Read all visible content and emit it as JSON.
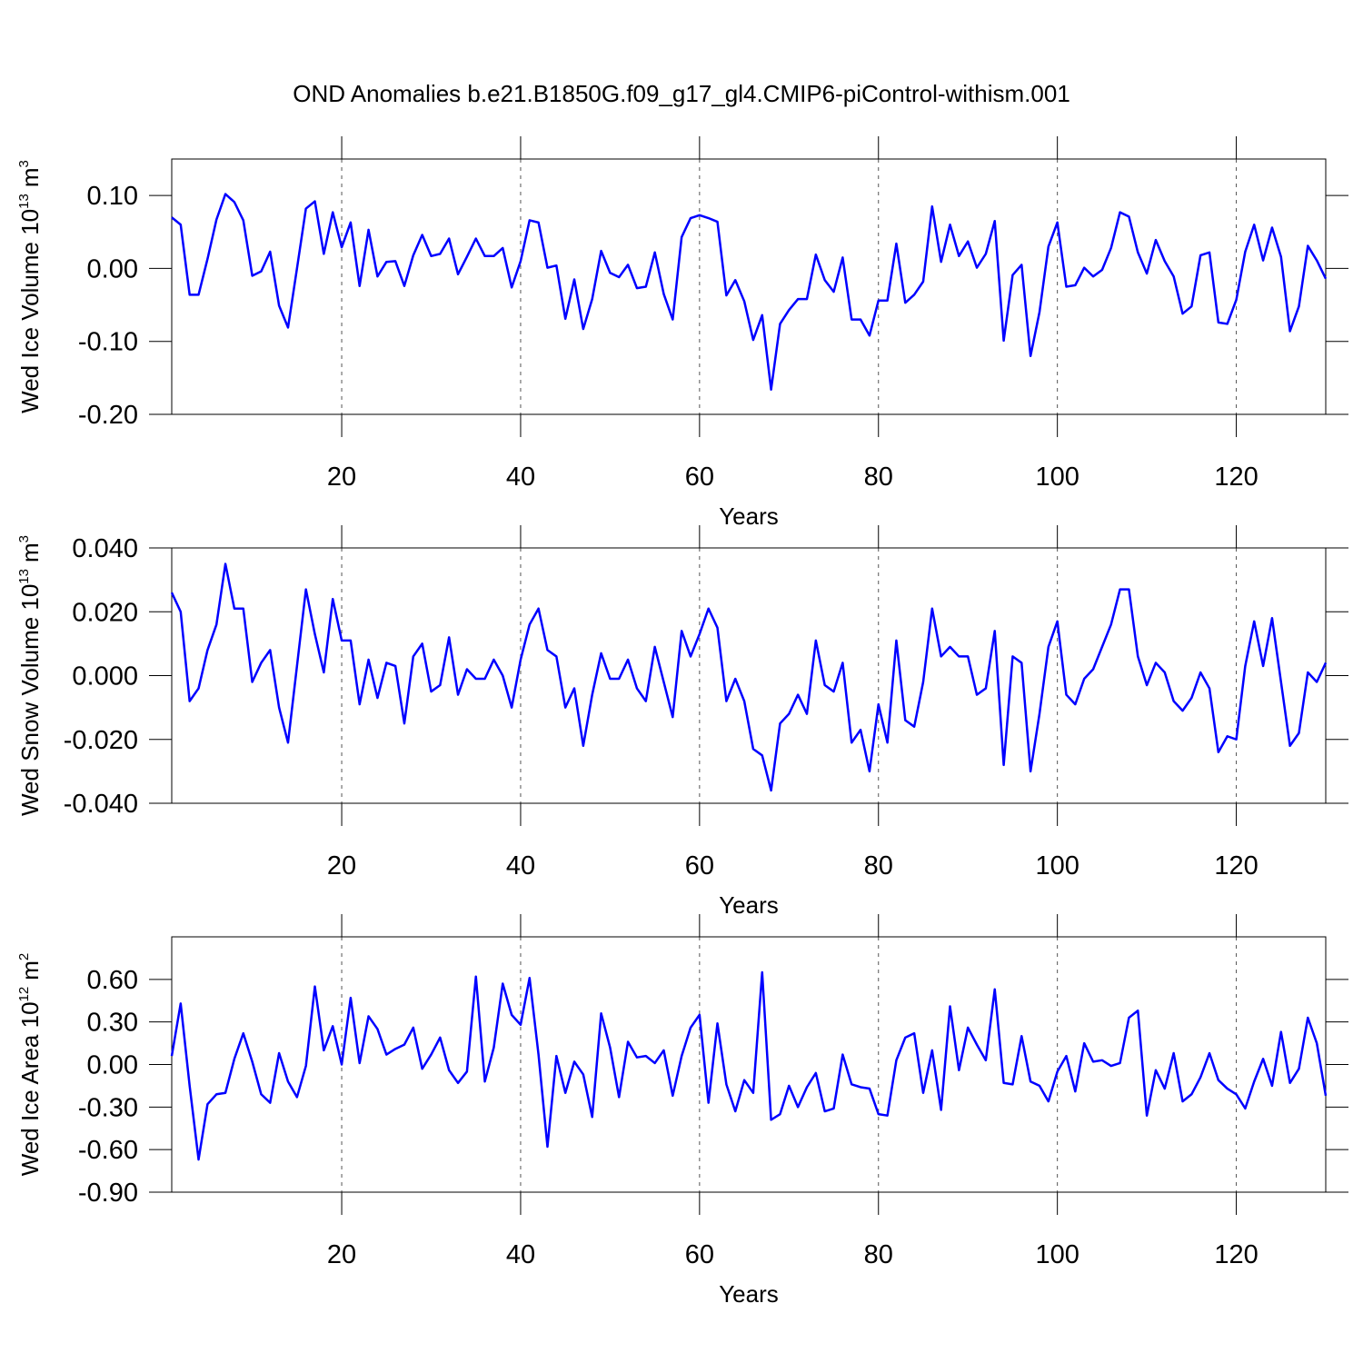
{
  "chart_data": [
    {
      "type": "line",
      "title": "OND Anomalies b.e21.B1850G.f09_g17_gl4.CMIP6-piControl-withism.001",
      "y_label": {
        "text": "Wed Ice Volume 10",
        "exponent": "13",
        "unit": "m",
        "unit_exponent": "3"
      },
      "x_label": "Years",
      "color": "#0000ff",
      "grid": "x-dashed",
      "xlim": [
        1,
        130
      ],
      "xticks": [
        20,
        40,
        60,
        80,
        100,
        120
      ],
      "ylim": [
        -0.2,
        0.15
      ],
      "yticks": [
        {
          "value": -0.2,
          "label": "-0.20"
        },
        {
          "value": -0.1,
          "label": "-0.10"
        },
        {
          "value": 0,
          "label": "0.00"
        },
        {
          "value": 0.1,
          "label": "0.10"
        }
      ],
      "x": [
        1,
        2,
        3,
        4,
        5,
        6,
        7,
        8,
        9,
        10,
        11,
        12,
        13,
        14,
        15,
        16,
        17,
        18,
        19,
        20,
        21,
        22,
        23,
        24,
        25,
        26,
        27,
        28,
        29,
        30,
        31,
        32,
        33,
        34,
        35,
        36,
        37,
        38,
        39,
        40,
        41,
        42,
        43,
        44,
        45,
        46,
        47,
        48,
        49,
        50,
        51,
        52,
        53,
        54,
        55,
        56,
        57,
        58,
        59,
        60,
        61,
        62,
        63,
        64,
        65,
        66,
        67,
        68,
        69,
        70,
        71,
        72,
        73,
        74,
        75,
        76,
        77,
        78,
        79,
        80,
        81,
        82,
        83,
        84,
        85,
        86,
        87,
        88,
        89,
        90,
        91,
        92,
        93,
        94,
        95,
        96,
        97,
        98,
        99,
        100,
        101,
        102,
        103,
        104,
        105,
        106,
        107,
        108,
        109,
        110,
        111,
        112,
        113,
        114,
        115,
        116,
        117,
        118,
        119,
        120,
        121,
        122,
        123,
        124,
        125,
        126,
        127,
        128,
        129,
        130
      ],
      "values": [
        0.07,
        0.06,
        -0.036,
        -0.036,
        0.013,
        0.067,
        0.102,
        0.091,
        0.066,
        -0.01,
        -0.004,
        0.023,
        -0.051,
        -0.081,
        0.0,
        0.082,
        0.092,
        0.02,
        0.077,
        0.029,
        0.063,
        -0.024,
        0.053,
        -0.011,
        0.009,
        0.01,
        -0.024,
        0.018,
        0.046,
        0.017,
        0.02,
        0.041,
        -0.008,
        0.016,
        0.041,
        0.017,
        0.017,
        0.028,
        -0.026,
        0.01,
        0.066,
        0.063,
        0.001,
        0.004,
        -0.069,
        -0.015,
        -0.083,
        -0.042,
        0.024,
        -0.006,
        -0.012,
        0.005,
        -0.027,
        -0.025,
        0.022,
        -0.035,
        -0.07,
        0.043,
        0.069,
        0.073,
        0.069,
        0.064,
        -0.037,
        -0.016,
        -0.045,
        -0.098,
        -0.064,
        -0.166,
        -0.076,
        -0.057,
        -0.042,
        -0.042,
        0.019,
        -0.016,
        -0.032,
        0.015,
        -0.07,
        -0.07,
        -0.092,
        -0.044,
        -0.044,
        0.034,
        -0.047,
        -0.036,
        -0.018,
        0.085,
        0.009,
        0.06,
        0.017,
        0.037,
        0.001,
        0.02,
        0.065,
        -0.099,
        -0.009,
        0.005,
        -0.12,
        -0.06,
        0.03,
        0.063,
        -0.025,
        -0.023,
        0.001,
        -0.011,
        -0.002,
        0.028,
        0.077,
        0.071,
        0.022,
        -0.007,
        0.039,
        0.01,
        -0.011,
        -0.062,
        -0.052,
        0.018,
        0.022,
        -0.074,
        -0.076,
        -0.043,
        0.023,
        0.06,
        0.011,
        0.056,
        0.016,
        -0.086,
        -0.052,
        0.031,
        0.011,
        -0.014
      ]
    },
    {
      "type": "line",
      "y_label": {
        "text": "Wed Snow Volume 10",
        "exponent": "13",
        "unit": "m",
        "unit_exponent": "3"
      },
      "x_label": "Years",
      "color": "#0000ff",
      "grid": "x-dashed",
      "xlim": [
        1,
        130
      ],
      "xticks": [
        20,
        40,
        60,
        80,
        100,
        120
      ],
      "ylim": [
        -0.04,
        0.04
      ],
      "yticks": [
        {
          "value": -0.04,
          "label": "-0.040"
        },
        {
          "value": -0.02,
          "label": "-0.020"
        },
        {
          "value": 0,
          "label": "0.000"
        },
        {
          "value": 0.02,
          "label": "0.020"
        },
        {
          "value": 0.04,
          "label": "0.040"
        }
      ],
      "x": [
        1,
        2,
        3,
        4,
        5,
        6,
        7,
        8,
        9,
        10,
        11,
        12,
        13,
        14,
        15,
        16,
        17,
        18,
        19,
        20,
        21,
        22,
        23,
        24,
        25,
        26,
        27,
        28,
        29,
        30,
        31,
        32,
        33,
        34,
        35,
        36,
        37,
        38,
        39,
        40,
        41,
        42,
        43,
        44,
        45,
        46,
        47,
        48,
        49,
        50,
        51,
        52,
        53,
        54,
        55,
        56,
        57,
        58,
        59,
        60,
        61,
        62,
        63,
        64,
        65,
        66,
        67,
        68,
        69,
        70,
        71,
        72,
        73,
        74,
        75,
        76,
        77,
        78,
        79,
        80,
        81,
        82,
        83,
        84,
        85,
        86,
        87,
        88,
        89,
        90,
        91,
        92,
        93,
        94,
        95,
        96,
        97,
        98,
        99,
        100,
        101,
        102,
        103,
        104,
        105,
        106,
        107,
        108,
        109,
        110,
        111,
        112,
        113,
        114,
        115,
        116,
        117,
        118,
        119,
        120,
        121,
        122,
        123,
        124,
        125,
        126,
        127,
        128,
        129,
        130
      ],
      "values": [
        0.026,
        0.02,
        -0.008,
        -0.004,
        0.008,
        0.016,
        0.035,
        0.021,
        0.021,
        -0.002,
        0.004,
        0.008,
        -0.01,
        -0.021,
        0.003,
        0.027,
        0.013,
        0.001,
        0.024,
        0.011,
        0.011,
        -0.009,
        0.005,
        -0.007,
        0.004,
        0.003,
        -0.015,
        0.006,
        0.01,
        -0.005,
        -0.003,
        0.012,
        -0.006,
        0.002,
        -0.001,
        -0.001,
        0.005,
        0.0,
        -0.01,
        0.005,
        0.016,
        0.021,
        0.008,
        0.006,
        -0.01,
        -0.004,
        -0.022,
        -0.006,
        0.007,
        -0.001,
        -0.001,
        0.005,
        -0.004,
        -0.008,
        0.009,
        -0.002,
        -0.013,
        0.014,
        0.006,
        0.013,
        0.021,
        0.015,
        -0.008,
        -0.001,
        -0.008,
        -0.023,
        -0.025,
        -0.036,
        -0.015,
        -0.012,
        -0.006,
        -0.012,
        0.011,
        -0.003,
        -0.005,
        0.004,
        -0.021,
        -0.017,
        -0.03,
        -0.009,
        -0.021,
        0.011,
        -0.014,
        -0.016,
        -0.002,
        0.021,
        0.006,
        0.009,
        0.006,
        0.006,
        -0.006,
        -0.004,
        0.014,
        -0.028,
        0.006,
        0.004,
        -0.03,
        -0.012,
        0.009,
        0.017,
        -0.006,
        -0.009,
        -0.001,
        0.002,
        0.009,
        0.016,
        0.027,
        0.027,
        0.006,
        -0.003,
        0.004,
        0.001,
        -0.008,
        -0.011,
        -0.007,
        0.001,
        -0.004,
        -0.024,
        -0.019,
        -0.02,
        0.003,
        0.017,
        0.003,
        0.018,
        -0.002,
        -0.022,
        -0.018,
        0.001,
        -0.002,
        0.004
      ]
    },
    {
      "type": "line",
      "y_label": {
        "text": "Wed Ice Area 10",
        "exponent": "12",
        "unit": "m",
        "unit_exponent": "2"
      },
      "x_label": "Years",
      "color": "#0000ff",
      "grid": "x-dashed",
      "xlim": [
        1,
        130
      ],
      "xticks": [
        20,
        40,
        60,
        80,
        100,
        120
      ],
      "ylim": [
        -0.9,
        0.9
      ],
      "yticks": [
        {
          "value": -0.9,
          "label": "-0.90"
        },
        {
          "value": -0.6,
          "label": "-0.60"
        },
        {
          "value": -0.3,
          "label": "-0.30"
        },
        {
          "value": 0,
          "label": "0.00"
        },
        {
          "value": 0.3,
          "label": "0.30"
        },
        {
          "value": 0.6,
          "label": "0.60"
        }
      ],
      "x": [
        1,
        2,
        3,
        4,
        5,
        6,
        7,
        8,
        9,
        10,
        11,
        12,
        13,
        14,
        15,
        16,
        17,
        18,
        19,
        20,
        21,
        22,
        23,
        24,
        25,
        26,
        27,
        28,
        29,
        30,
        31,
        32,
        33,
        34,
        35,
        36,
        37,
        38,
        39,
        40,
        41,
        42,
        43,
        44,
        45,
        46,
        47,
        48,
        49,
        50,
        51,
        52,
        53,
        54,
        55,
        56,
        57,
        58,
        59,
        60,
        61,
        62,
        63,
        64,
        65,
        66,
        67,
        68,
        69,
        70,
        71,
        72,
        73,
        74,
        75,
        76,
        77,
        78,
        79,
        80,
        81,
        82,
        83,
        84,
        85,
        86,
        87,
        88,
        89,
        90,
        91,
        92,
        93,
        94,
        95,
        96,
        97,
        98,
        99,
        100,
        101,
        102,
        103,
        104,
        105,
        106,
        107,
        108,
        109,
        110,
        111,
        112,
        113,
        114,
        115,
        116,
        117,
        118,
        119,
        120,
        121,
        122,
        123,
        124,
        125,
        126,
        127,
        128,
        129,
        130
      ],
      "values": [
        0.06,
        0.43,
        -0.15,
        -0.67,
        -0.28,
        -0.21,
        -0.2,
        0.04,
        0.22,
        0.02,
        -0.21,
        -0.27,
        0.08,
        -0.12,
        -0.23,
        -0.01,
        0.55,
        0.1,
        0.27,
        0.0,
        0.47,
        0.01,
        0.34,
        0.25,
        0.07,
        0.11,
        0.14,
        0.26,
        -0.03,
        0.07,
        0.19,
        -0.04,
        -0.13,
        -0.05,
        0.62,
        -0.12,
        0.12,
        0.57,
        0.35,
        0.28,
        0.61,
        0.07,
        -0.58,
        0.06,
        -0.2,
        0.02,
        -0.07,
        -0.37,
        0.36,
        0.12,
        -0.23,
        0.16,
        0.05,
        0.06,
        0.01,
        0.1,
        -0.22,
        0.06,
        0.26,
        0.35,
        -0.27,
        0.29,
        -0.14,
        -0.33,
        -0.11,
        -0.2,
        0.65,
        -0.39,
        -0.35,
        -0.15,
        -0.3,
        -0.16,
        -0.06,
        -0.33,
        -0.31,
        0.07,
        -0.14,
        -0.16,
        -0.17,
        -0.35,
        -0.36,
        0.03,
        0.19,
        0.22,
        -0.2,
        0.1,
        -0.32,
        0.41,
        -0.04,
        0.26,
        0.14,
        0.03,
        0.53,
        -0.13,
        -0.14,
        0.2,
        -0.12,
        -0.15,
        -0.26,
        -0.05,
        0.06,
        -0.19,
        0.15,
        0.02,
        0.03,
        -0.01,
        0.01,
        0.33,
        0.38,
        -0.36,
        -0.04,
        -0.17,
        0.08,
        -0.26,
        -0.21,
        -0.09,
        0.08,
        -0.11,
        -0.17,
        -0.21,
        -0.31,
        -0.12,
        0.04,
        -0.15,
        0.23,
        -0.13,
        -0.03,
        0.33,
        0.15,
        -0.22
      ]
    }
  ]
}
